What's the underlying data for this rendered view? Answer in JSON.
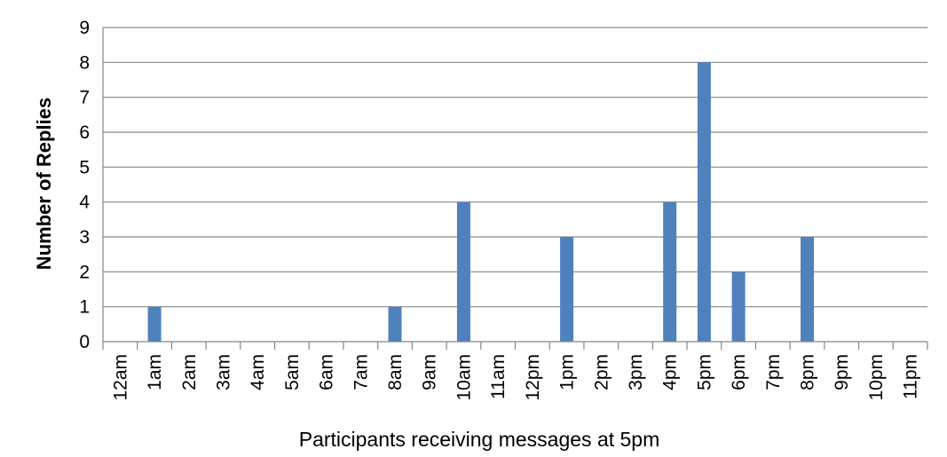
{
  "chart_data": {
    "type": "bar",
    "title": "",
    "xlabel": "Participants receiving messages at 5pm",
    "ylabel": "Number of Replies",
    "categories": [
      "12am",
      "1am",
      "2am",
      "3am",
      "4am",
      "5am",
      "6am",
      "7am",
      "8am",
      "9am",
      "10am",
      "11am",
      "12pm",
      "1pm",
      "2pm",
      "3pm",
      "4pm",
      "5pm",
      "6pm",
      "7pm",
      "8pm",
      "9pm",
      "10pm",
      "11pm"
    ],
    "values": [
      0,
      1,
      0,
      0,
      0,
      0,
      0,
      0,
      1,
      0,
      4,
      0,
      0,
      3,
      0,
      0,
      4,
      8,
      2,
      0,
      3,
      0,
      0,
      0
    ],
    "ylim": [
      0,
      9
    ],
    "yticks": [
      "0",
      "1",
      "2",
      "3",
      "4",
      "5",
      "6",
      "7",
      "8",
      "9"
    ],
    "grid": true,
    "legend": "none",
    "colors": {
      "bar": "#4f81bd",
      "grid": "#868686",
      "axis": "#868686"
    }
  }
}
